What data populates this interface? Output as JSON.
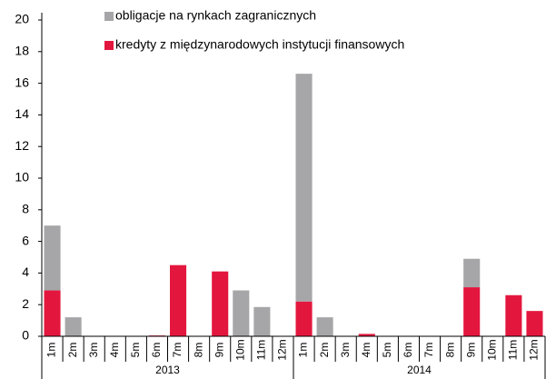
{
  "chart_data": {
    "type": "stacked_bar",
    "categories": [
      "1m",
      "2m",
      "3m",
      "4m",
      "5m",
      "6m",
      "7m",
      "8m",
      "9m",
      "10m",
      "11m",
      "12m",
      "1m",
      "2m",
      "3m",
      "4m",
      "5m",
      "6m",
      "7m",
      "8m",
      "9m",
      "10m",
      "11m",
      "12m"
    ],
    "groups": [
      "2013",
      "2014"
    ],
    "series": [
      {
        "name": "kredyty z międzynarodowych instytucji finansowych",
        "color": "#e3173e",
        "values": [
          2.9,
          0,
          0,
          0,
          0,
          0.05,
          4.5,
          0,
          4.1,
          0,
          0,
          0,
          2.2,
          0,
          0,
          0.15,
          0,
          0,
          0,
          0,
          3.1,
          0,
          2.6,
          1.6
        ]
      },
      {
        "name": "obligacje na rynkach zagranicznych",
        "color": "#a6a6a8",
        "values": [
          4.1,
          1.2,
          0,
          0,
          0,
          0,
          0,
          0,
          0,
          2.9,
          1.85,
          0,
          14.4,
          1.2,
          0,
          0,
          0,
          0,
          0,
          0,
          1.8,
          0,
          0,
          0
        ]
      }
    ],
    "ylim": [
      0,
      20
    ],
    "yticks": [
      0,
      2,
      4,
      6,
      8,
      10,
      12,
      14,
      16,
      18,
      20
    ]
  }
}
